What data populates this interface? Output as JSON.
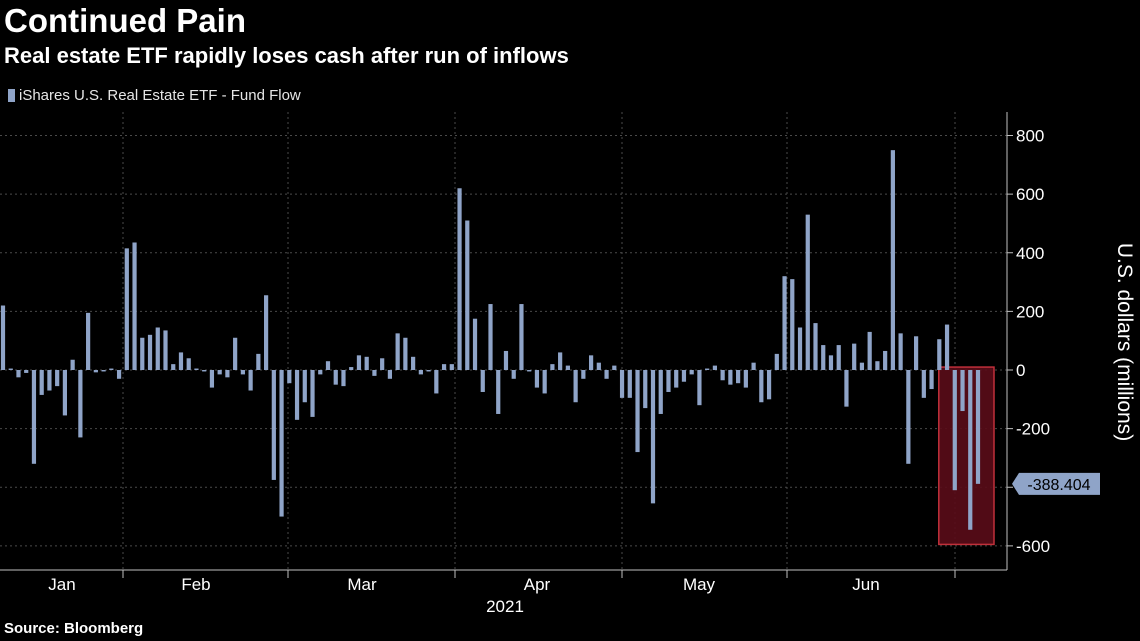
{
  "title": "Continued Pain",
  "subtitle": "Real estate ETF rapidly loses cash after run of inflows",
  "source": "Source: Bloomberg",
  "colors": {
    "bar": "#8fa4c8",
    "highlight_fill": "#5a0c18",
    "highlight_stroke": "#c0303a",
    "callout": "#8fa4c8"
  },
  "chart_data": {
    "type": "bar",
    "series": [
      {
        "name": "iShares U.S. Real Estate ETF - Fund Flow",
        "values": [
          220,
          5,
          -25,
          -10,
          -320,
          -85,
          -70,
          -55,
          -155,
          35,
          -230,
          195,
          -8,
          -5,
          5,
          -30,
          415,
          435,
          110,
          120,
          145,
          135,
          20,
          60,
          40,
          5,
          -5,
          -60,
          -15,
          -25,
          110,
          -15,
          -70,
          55,
          255,
          -375,
          -500,
          -45,
          -170,
          -110,
          -160,
          -15,
          30,
          -50,
          -55,
          10,
          50,
          45,
          -20,
          40,
          -30,
          125,
          110,
          45,
          -15,
          -5,
          -80,
          20,
          20,
          620,
          510,
          175,
          -75,
          225,
          -150,
          65,
          -30,
          225,
          -5,
          -60,
          -80,
          20,
          60,
          15,
          -110,
          -30,
          50,
          25,
          -30,
          15,
          -95,
          -95,
          -280,
          -130,
          -455,
          -150,
          -75,
          -60,
          -40,
          -15,
          -120,
          5,
          15,
          -35,
          -50,
          -45,
          -60,
          25,
          -110,
          -100,
          55,
          320,
          310,
          145,
          530,
          160,
          85,
          50,
          85,
          -125,
          90,
          25,
          130,
          30,
          65,
          750,
          125,
          -320,
          115,
          -95,
          -65,
          105,
          155,
          -410,
          -140,
          -545,
          -388.404
        ]
      }
    ],
    "xlabel": "2021",
    "month_labels": [
      "Jan",
      "Feb",
      "Mar",
      "Apr",
      "May",
      "Jun"
    ],
    "ylabel": "U.S. dollars (millions)",
    "y_ticks": [
      "800",
      "600",
      "400",
      "200",
      "0",
      "-200",
      "-400",
      "-600"
    ],
    "y_tick_values": [
      800,
      600,
      400,
      200,
      0,
      -200,
      -400,
      -600
    ],
    "ylim": [
      -660,
      870
    ],
    "last_value_label": "-388.404",
    "highlight_last_n": 4,
    "grid": true
  }
}
